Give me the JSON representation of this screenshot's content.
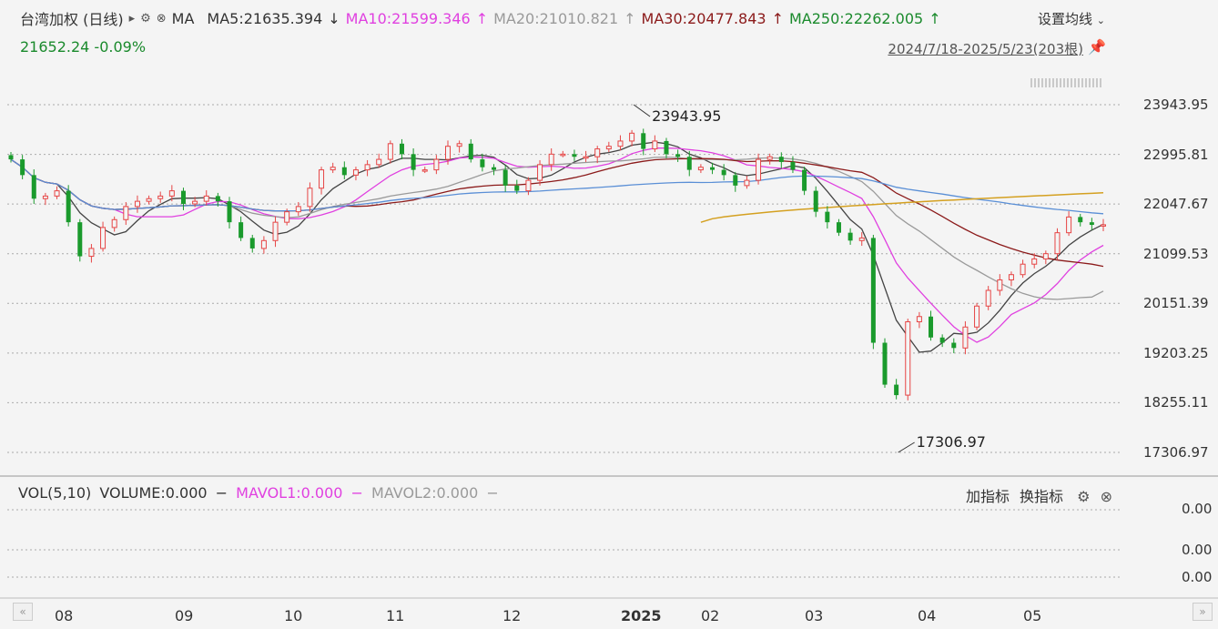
{
  "header": {
    "title": "台湾加权 (日线)",
    "indicator": "MA",
    "ma5": "MA5:21635.394",
    "ma5_arrow": "↓",
    "ma10": "MA10:21599.346",
    "ma10_arrow": "↑",
    "ma20": "MA20:21010.821",
    "ma20_arrow": "↑",
    "ma30": "MA30:20477.843",
    "ma30_arrow": "↑",
    "ma250": "MA250:22262.005",
    "ma250_arrow": "↑",
    "current": "21652.24 -0.09%",
    "settings_label": "设置均线",
    "range": "2024/7/18-2025/5/23(203根)"
  },
  "colors": {
    "ma5": "#444444",
    "ma10": "#e040e0",
    "ma20": "#9a9a9a",
    "ma30": "#8b1a1a",
    "ma60": "#5a8fd6",
    "ma250": "#d4a020",
    "up": "#e64545",
    "down": "#1a9a2c"
  },
  "volume_panel": {
    "label": "VOL(5,10)",
    "volume": "VOLUME:0.000",
    "mavol1": "MAVOL1:0.000",
    "mavol2": "MAVOL2:0.000",
    "add_indicator": "加指标",
    "switch_indicator": "换指标",
    "y_labels": [
      "0.00",
      "0.00",
      "0.00"
    ]
  },
  "chart_data": {
    "type": "candlestick",
    "y_tick_labels": [
      "23943.95",
      "22995.81",
      "22047.67",
      "21099.53",
      "20151.39",
      "19203.25",
      "18255.11",
      "17306.97"
    ],
    "ylim": [
      17306.97,
      23943.95
    ],
    "x_tick_labels": [
      "08",
      "09",
      "10",
      "11",
      "12",
      "2025",
      "02",
      "03",
      "04",
      "05"
    ],
    "annotations": [
      {
        "label": "23943.95",
        "x": "2025-01",
        "y": 23943.95
      },
      {
        "label": "17306.97",
        "x": "2025-04",
        "y": 17306.97
      }
    ],
    "close": [
      22900,
      22600,
      22150,
      22200,
      22300,
      21700,
      21050,
      21200,
      21600,
      21750,
      22000,
      22100,
      22150,
      22200,
      22300,
      22050,
      22100,
      22200,
      22100,
      21700,
      21400,
      21200,
      21350,
      21700,
      21900,
      22000,
      22350,
      22700,
      22750,
      22600,
      22700,
      22800,
      22900,
      23200,
      23000,
      22700,
      22700,
      22900,
      23150,
      23200,
      22900,
      22750,
      22700,
      22400,
      22300,
      22500,
      22800,
      23000,
      23000,
      22950,
      22950,
      23100,
      23150,
      23250,
      23400,
      23100,
      23250,
      23000,
      22950,
      22700,
      22750,
      22700,
      22600,
      22400,
      22500,
      22900,
      22950,
      22850,
      22700,
      22300,
      21900,
      21700,
      21500,
      21350,
      21400,
      19400,
      18600,
      18400,
      19800,
      19900,
      19500,
      19400,
      19300,
      19700,
      20100,
      20400,
      20600,
      20700,
      20900,
      21000,
      21100,
      21500,
      21800,
      21700,
      21650,
      21652.24
    ],
    "ma5_label": "MA5:21635.394",
    "ma250_label": "MA250:22262.005"
  }
}
